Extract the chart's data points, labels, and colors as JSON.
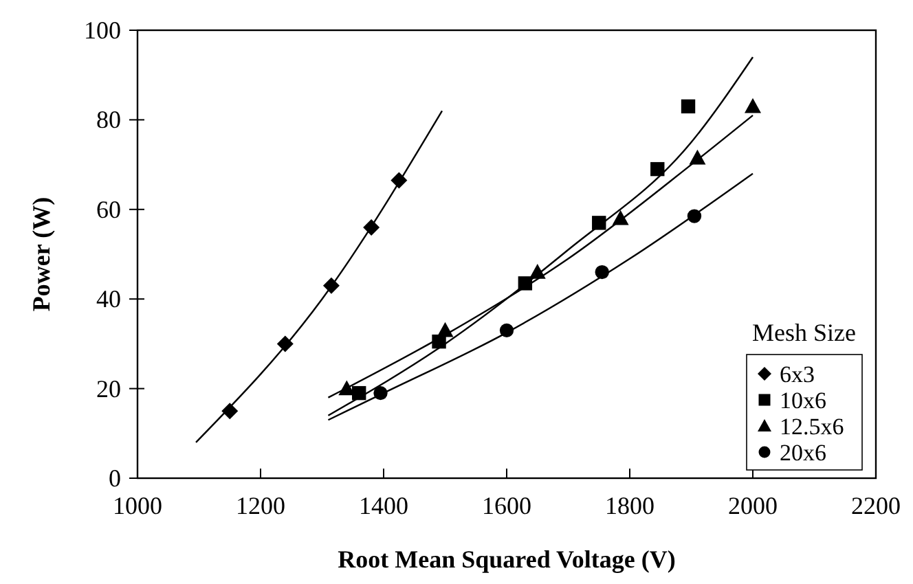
{
  "chart_data": {
    "type": "scatter",
    "xlabel": "Root Mean Squared Voltage (V)",
    "ylabel": "Power (W)",
    "legend_title": "Mesh Size",
    "legend": "bottom right",
    "grid": false,
    "xlim": [
      1000,
      2200
    ],
    "xticks": [
      1000,
      1200,
      1400,
      1600,
      1800,
      2000,
      2200
    ],
    "ylim": [
      0,
      100
    ],
    "yticks": [
      0,
      20,
      40,
      60,
      80,
      100
    ],
    "series": [
      {
        "name": "6x3",
        "color": "#000000",
        "marker": "diamond",
        "x": [
          1150,
          1240,
          1315,
          1380,
          1425
        ],
        "values": [
          15,
          30,
          43,
          56,
          66.5
        ]
      },
      {
        "name": "10x6",
        "color": "#000000",
        "marker": "square",
        "x": [
          1360,
          1490,
          1630,
          1750,
          1845,
          1895
        ],
        "values": [
          19,
          30.5,
          43.5,
          57,
          69,
          83
        ]
      },
      {
        "name": "12.5x6",
        "color": "#000000",
        "marker": "triangle",
        "x": [
          1340,
          1500,
          1650,
          1785,
          1910,
          2000
        ],
        "values": [
          20,
          33,
          46,
          58,
          71.5,
          83
        ]
      },
      {
        "name": "20x6",
        "color": "#000000",
        "marker": "circle",
        "x": [
          1395,
          1600,
          1755,
          1905
        ],
        "values": [
          19,
          33,
          46,
          58.5
        ]
      },
      {
        "type": "line",
        "color": "#000000",
        "marker": "none",
        "x": [
          1095,
          1300,
          1495
        ],
        "values": [
          8,
          40,
          82
        ]
      },
      {
        "type": "line",
        "color": "#000000",
        "marker": "none",
        "x": [
          1310,
          1500,
          1700,
          1900,
          2000
        ],
        "values": [
          14,
          30,
          51,
          75,
          94
        ]
      },
      {
        "type": "line",
        "color": "#000000",
        "marker": "none",
        "x": [
          1310,
          1500,
          1700,
          1900,
          2000
        ],
        "values": [
          18,
          32,
          49,
          70,
          81
        ]
      },
      {
        "type": "line",
        "color": "#000000",
        "marker": "none",
        "x": [
          1310,
          1400,
          1600,
          1800,
          2000
        ],
        "values": [
          13,
          19,
          32.5,
          49,
          68
        ]
      }
    ]
  }
}
